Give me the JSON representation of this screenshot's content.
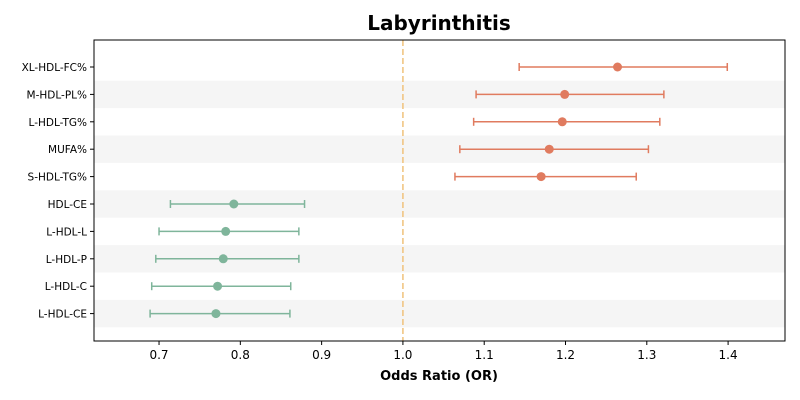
{
  "chart_data": {
    "type": "forest",
    "title": "Labyrinthitis",
    "xlabel": "Odds Ratio (OR)",
    "ylabel": "",
    "xlim": [
      0.62,
      1.47
    ],
    "xticks": [
      "0.7",
      "0.8",
      "0.9",
      "1.0",
      "1.1",
      "1.2",
      "1.3",
      "1.4"
    ],
    "reference_line": 1.0,
    "reference_color": "#f0c27b",
    "colors": {
      "risk": "#e07b5f",
      "protective": "#7fb59b",
      "band": "#f5f5f5"
    },
    "grid": false,
    "rows": [
      {
        "label": "XL-HDL-FC%",
        "or": 1.264,
        "lower": 1.143,
        "upper": 1.399,
        "group": "risk"
      },
      {
        "label": "M-HDL-PL%",
        "or": 1.199,
        "lower": 1.09,
        "upper": 1.321,
        "group": "risk"
      },
      {
        "label": "L-HDL-TG%",
        "or": 1.196,
        "lower": 1.087,
        "upper": 1.316,
        "group": "risk"
      },
      {
        "label": "MUFA%",
        "or": 1.18,
        "lower": 1.07,
        "upper": 1.302,
        "group": "risk"
      },
      {
        "label": "S-HDL-TG%",
        "or": 1.17,
        "lower": 1.064,
        "upper": 1.287,
        "group": "risk"
      },
      {
        "label": "HDL-CE",
        "or": 0.792,
        "lower": 0.714,
        "upper": 0.879,
        "group": "protective"
      },
      {
        "label": "L-HDL-L",
        "or": 0.782,
        "lower": 0.7,
        "upper": 0.872,
        "group": "protective"
      },
      {
        "label": "L-HDL-P",
        "or": 0.779,
        "lower": 0.696,
        "upper": 0.872,
        "group": "protective"
      },
      {
        "label": "L-HDL-C",
        "or": 0.772,
        "lower": 0.691,
        "upper": 0.862,
        "group": "protective"
      },
      {
        "label": "L-HDL-CE",
        "or": 0.77,
        "lower": 0.689,
        "upper": 0.861,
        "group": "protective"
      }
    ]
  }
}
